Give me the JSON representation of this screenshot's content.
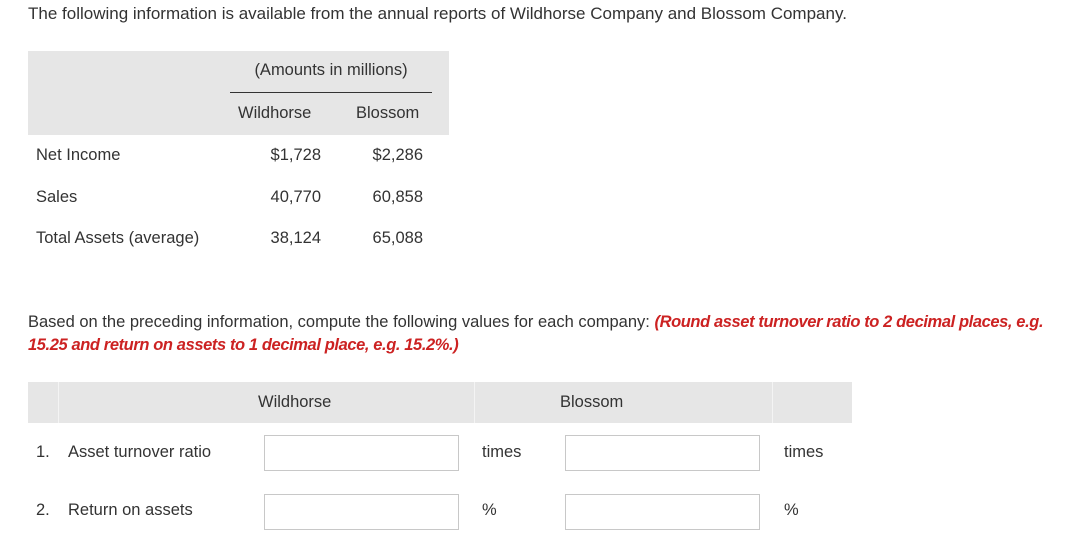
{
  "intro": "The following information is available from the annual reports of Wildhorse Company and Blossom Company.",
  "table1": {
    "amounts_header": "(Amounts in millions)",
    "col_wildhorse": "Wildhorse",
    "col_blossom": "Blossom",
    "rows": [
      {
        "label": "Net Income",
        "wildhorse": "$1,728",
        "blossom": "$2,286"
      },
      {
        "label": "Sales",
        "wildhorse": "40,770",
        "blossom": "60,858"
      },
      {
        "label": "Total Assets (average)",
        "wildhorse": "38,124",
        "blossom": "65,088"
      }
    ]
  },
  "instructions": {
    "text": "Based on the preceding information, compute the following values for each company:",
    "note": "(Round asset turnover ratio to 2 decimal places, e.g. 15.25 and return on assets to 1 decimal place, e.g. 15.2%.)"
  },
  "table2": {
    "col_wildhorse": "Wildhorse",
    "col_blossom": "Blossom",
    "rows": [
      {
        "number": "1.",
        "label": "Asset turnover ratio",
        "wildhorse_value": "",
        "blossom_value": "",
        "unit": "times"
      },
      {
        "number": "2.",
        "label": "Return on assets",
        "wildhorse_value": "",
        "blossom_value": "",
        "unit": "%"
      }
    ]
  }
}
